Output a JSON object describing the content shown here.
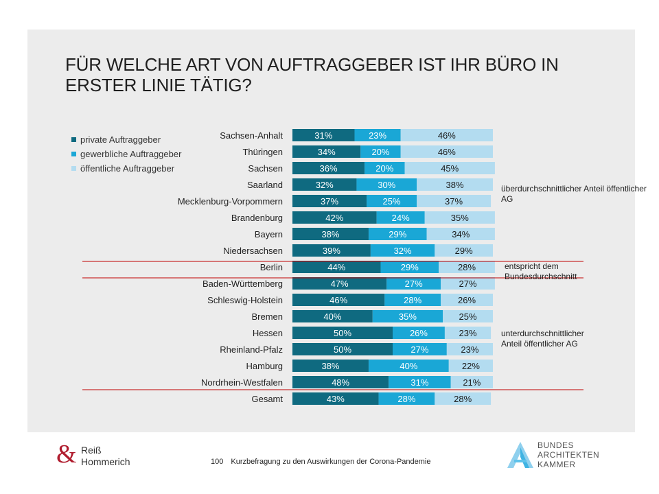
{
  "title": "FÜR WELCHE ART VON AUFTRAGGEBER IST IHR BÜRO IN ERSTER LINIE TÄTIG?",
  "colors": {
    "private": "#0f6a80",
    "gewerblich": "#1aa7d6",
    "oeffentlich": "#b3dcf0",
    "separator": "#c00000",
    "panel": "#ececec"
  },
  "notes": {
    "above": "überdurchschnittlicher Anteil öffentlicher AG",
    "average": "entspricht dem Bundesdurchschnitt",
    "below": "unterdurchschnittlicher Anteil öffentlicher AG"
  },
  "footer": {
    "page_number": "100",
    "text": "Kurzbefragung zu den Auswirkungen der Corona-Pandemie"
  },
  "logos": {
    "left_line1": "Reiß",
    "left_line2": "Hommerich",
    "left_symbol": "&",
    "right_line1": "BUNDES",
    "right_line2": "ARCHITEKTEN",
    "right_line3": "KAMMER"
  },
  "chart_data": {
    "type": "bar",
    "orientation": "horizontal-stacked-100",
    "xlim": [
      0,
      100
    ],
    "legend_position": "top-left",
    "categories": [
      "Sachsen-Anhalt",
      "Thüringen",
      "Sachsen",
      "Saarland",
      "Mecklenburg-Vorpommern",
      "Brandenburg",
      "Bayern",
      "Niedersachsen",
      "Berlin",
      "Baden-Württemberg",
      "Schleswig-Holstein",
      "Bremen",
      "Hessen",
      "Rheinland-Pfalz",
      "Hamburg",
      "Nordrhein-Westfalen",
      "Gesamt"
    ],
    "series": [
      {
        "name": "private Auftraggeber",
        "values": [
          31,
          34,
          36,
          32,
          37,
          42,
          38,
          39,
          44,
          47,
          46,
          40,
          50,
          50,
          38,
          48,
          43
        ]
      },
      {
        "name": "gewerbliche Auftraggeber",
        "values": [
          23,
          20,
          20,
          30,
          25,
          24,
          29,
          32,
          29,
          27,
          28,
          35,
          26,
          27,
          40,
          31,
          28
        ]
      },
      {
        "name": "öffentliche Auftraggeber",
        "values": [
          46,
          46,
          45,
          38,
          37,
          35,
          34,
          29,
          28,
          27,
          26,
          25,
          23,
          23,
          22,
          21,
          28
        ]
      }
    ]
  }
}
